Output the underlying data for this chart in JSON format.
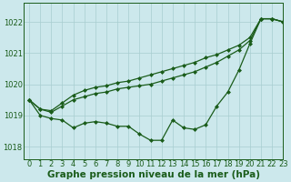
{
  "title": "Graphe pression niveau de la mer (hPa)",
  "background_color": "#cce8ec",
  "line_color": "#1a5c1a",
  "grid_color": "#a8cdd0",
  "xlim": [
    -0.5,
    23
  ],
  "ylim": [
    1017.6,
    1022.6
  ],
  "yticks": [
    1018,
    1019,
    1020,
    1021,
    1022
  ],
  "xticks": [
    0,
    1,
    2,
    3,
    4,
    5,
    6,
    7,
    8,
    9,
    10,
    11,
    12,
    13,
    14,
    15,
    16,
    17,
    18,
    19,
    20,
    21,
    22,
    23
  ],
  "series_low": [
    1019.5,
    1019.0,
    1018.9,
    1018.85,
    1018.6,
    1018.75,
    1018.8,
    1018.75,
    1018.65,
    1018.65,
    1018.4,
    1018.2,
    1018.2,
    1018.85,
    1018.6,
    1018.55,
    1018.7,
    1019.3,
    1019.75,
    1020.45,
    1021.3,
    1022.1,
    1022.1,
    1022.0
  ],
  "series_mid": [
    1019.5,
    1019.2,
    1019.1,
    1019.3,
    1019.5,
    1019.6,
    1019.7,
    1019.75,
    1019.85,
    1019.9,
    1019.95,
    1020.0,
    1020.1,
    1020.2,
    1020.3,
    1020.4,
    1020.55,
    1020.7,
    1020.9,
    1021.1,
    1021.4,
    1022.1,
    1022.1,
    1022.0
  ],
  "series_high": [
    1019.5,
    1019.2,
    1019.15,
    1019.4,
    1019.65,
    1019.8,
    1019.9,
    1019.95,
    1020.05,
    1020.1,
    1020.2,
    1020.3,
    1020.4,
    1020.5,
    1020.6,
    1020.7,
    1020.85,
    1020.95,
    1021.1,
    1021.25,
    1021.5,
    1022.1,
    1022.1,
    1022.0
  ],
  "marker": "D",
  "marker_size": 2.0,
  "line_width": 0.9,
  "title_fontsize": 7.5,
  "tick_fontsize": 6.0,
  "tick_color": "#1a5c1a",
  "axis_color": "#1a5c1a",
  "figwidth": 3.2,
  "figheight": 2.0,
  "dpi": 100
}
